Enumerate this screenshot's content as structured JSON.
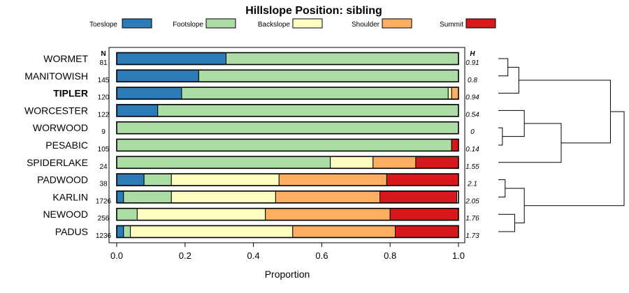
{
  "chart_data": {
    "type": "bar",
    "stacked": true,
    "orientation": "horizontal",
    "title": "Hillslope Position: sibling",
    "xlabel": "Proportion",
    "xlim": [
      0,
      1
    ],
    "xticks": [
      "0.0",
      "0.2",
      "0.4",
      "0.6",
      "0.8",
      "1.0"
    ],
    "legend_position": "top",
    "n_header": "N",
    "h_header": "H",
    "highlight_category": "TIPLER",
    "categories": [
      "WORMET",
      "MANITOWISH",
      "TIPLER",
      "WORCESTER",
      "WORWOOD",
      "PESABIC",
      "SPIDERLAKE",
      "PADWOOD",
      "KARLIN",
      "NEWOOD",
      "PADUS"
    ],
    "n": [
      "81",
      "145",
      "120",
      "122",
      "9",
      "105",
      "24",
      "38",
      "1726",
      "256",
      "1236"
    ],
    "h": [
      "0.91",
      "0.8",
      "0.94",
      "0.54",
      "0",
      "0.14",
      "1.55",
      "2.1",
      "2.05",
      "1.76",
      "1.73"
    ],
    "series": [
      {
        "name": "Toeslope",
        "color": "#2c7bb6",
        "values": [
          0.32,
          0.24,
          0.19,
          0.12,
          0.0,
          0.0,
          0.0,
          0.08,
          0.02,
          0.0,
          0.02
        ]
      },
      {
        "name": "Footslope",
        "color": "#abdda4",
        "values": [
          0.68,
          0.76,
          0.78,
          0.88,
          1.0,
          0.98,
          0.625,
          0.08,
          0.14,
          0.06,
          0.02
        ]
      },
      {
        "name": "Backslope",
        "color": "#ffffbf",
        "values": [
          0.0,
          0.0,
          0.01,
          0.0,
          0.0,
          0.0,
          0.125,
          0.315,
          0.305,
          0.375,
          0.475
        ]
      },
      {
        "name": "Shoulder",
        "color": "#fdae61",
        "values": [
          0.0,
          0.0,
          0.02,
          0.0,
          0.0,
          0.0,
          0.125,
          0.315,
          0.305,
          0.365,
          0.3
        ]
      },
      {
        "name": "Summit",
        "color": "#d7191c",
        "values": [
          0.0,
          0.0,
          0.0,
          0.0,
          0.0,
          0.02,
          0.125,
          0.21,
          0.225,
          0.2,
          0.185
        ]
      }
    ],
    "dendrogram": {
      "merges": [
        {
          "a": "WORMET",
          "b": "MANITOWISH",
          "height": 0.07
        },
        {
          "a": "m0",
          "b": "TIPLER",
          "height": 0.15
        },
        {
          "a": "WORWOOD",
          "b": "PESABIC",
          "height": 0.03
        },
        {
          "a": "WORCESTER",
          "b": "m2",
          "height": 0.19
        },
        {
          "a": "m3",
          "b": "SPIDERLAKE",
          "height": 0.46
        },
        {
          "a": "m1",
          "b": "m4",
          "height": 0.82
        },
        {
          "a": "PADWOOD",
          "b": "KARLIN",
          "height": 0.05
        },
        {
          "a": "NEWOOD",
          "b": "PADUS",
          "height": 0.12
        },
        {
          "a": "m6",
          "b": "m7",
          "height": 0.19
        },
        {
          "a": "m5",
          "b": "m8",
          "height": 0.92
        }
      ]
    }
  }
}
